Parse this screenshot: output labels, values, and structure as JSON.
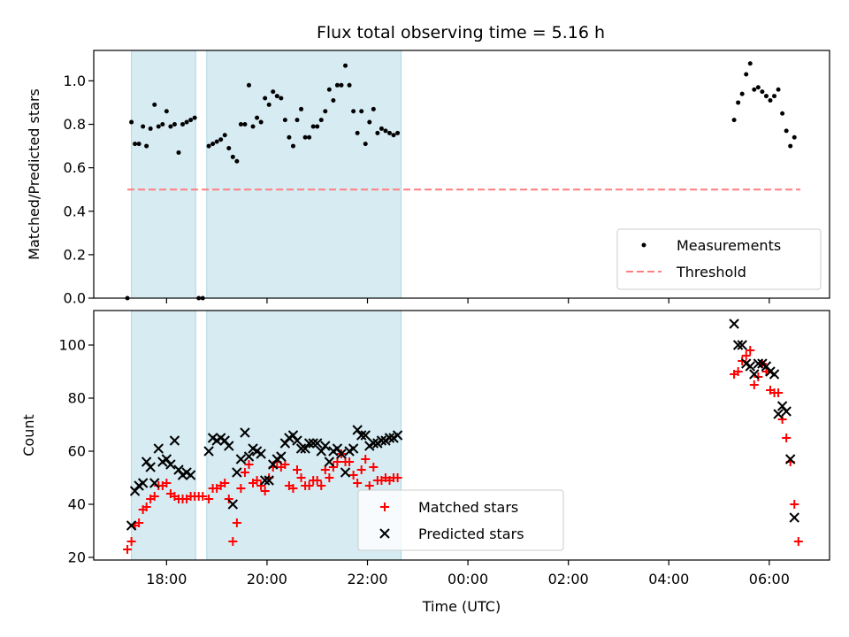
{
  "title": "Flux total observing time = 5.16 h",
  "colors": {
    "measurement": "#000000",
    "threshold": "#ff7f7f",
    "matched": "#ff0000",
    "predicted": "#000000",
    "shade": "#add8e6"
  },
  "chart_data": [
    {
      "type": "scatter",
      "ylabel": "Matched/Predicted stars",
      "xlabel": "",
      "ylim": [
        0,
        1.14
      ],
      "yticks": [
        0.0,
        0.2,
        0.4,
        0.6,
        0.8,
        1.0
      ],
      "ytick_labels": [
        "0.0",
        "0.2",
        "0.4",
        "0.6",
        "0.8",
        "1.0"
      ],
      "x_unit": "hours since 00:00 UTC (day 1 = 24+)",
      "legend_position": "lower-right",
      "shaded_intervals": [
        [
          17.3,
          18.58
        ],
        [
          18.8,
          22.67
        ]
      ],
      "threshold": {
        "name": "Threshold",
        "y": 0.5,
        "x_range": [
          17.22,
          30.62
        ]
      },
      "series": [
        {
          "name": "Measurements",
          "marker": "dot",
          "points": [
            [
              17.22,
              0.0
            ],
            [
              17.3,
              0.81
            ],
            [
              17.37,
              0.71
            ],
            [
              17.45,
              0.71
            ],
            [
              17.53,
              0.79
            ],
            [
              17.6,
              0.7
            ],
            [
              17.68,
              0.78
            ],
            [
              17.76,
              0.89
            ],
            [
              17.84,
              0.79
            ],
            [
              17.92,
              0.8
            ],
            [
              18.0,
              0.86
            ],
            [
              18.08,
              0.79
            ],
            [
              18.16,
              0.8
            ],
            [
              18.24,
              0.67
            ],
            [
              18.32,
              0.8
            ],
            [
              18.4,
              0.81
            ],
            [
              18.48,
              0.82
            ],
            [
              18.56,
              0.83
            ],
            [
              18.64,
              0.0
            ],
            [
              18.72,
              0.0
            ],
            [
              18.84,
              0.7
            ],
            [
              18.92,
              0.71
            ],
            [
              19.0,
              0.72
            ],
            [
              19.08,
              0.73
            ],
            [
              19.16,
              0.75
            ],
            [
              19.24,
              0.69
            ],
            [
              19.32,
              0.65
            ],
            [
              19.4,
              0.63
            ],
            [
              19.48,
              0.8
            ],
            [
              19.56,
              0.8
            ],
            [
              19.64,
              0.98
            ],
            [
              19.72,
              0.79
            ],
            [
              19.8,
              0.83
            ],
            [
              19.88,
              0.81
            ],
            [
              19.96,
              0.92
            ],
            [
              20.04,
              0.89
            ],
            [
              20.12,
              0.95
            ],
            [
              20.2,
              0.93
            ],
            [
              20.28,
              0.92
            ],
            [
              20.36,
              0.82
            ],
            [
              20.44,
              0.74
            ],
            [
              20.52,
              0.7
            ],
            [
              20.6,
              0.82
            ],
            [
              20.68,
              0.87
            ],
            [
              20.76,
              0.74
            ],
            [
              20.84,
              0.74
            ],
            [
              20.92,
              0.79
            ],
            [
              21.0,
              0.79
            ],
            [
              21.08,
              0.82
            ],
            [
              21.16,
              0.86
            ],
            [
              21.24,
              0.96
            ],
            [
              21.32,
              0.91
            ],
            [
              21.4,
              0.98
            ],
            [
              21.48,
              0.98
            ],
            [
              21.56,
              1.07
            ],
            [
              21.64,
              0.98
            ],
            [
              21.72,
              0.86
            ],
            [
              21.8,
              0.76
            ],
            [
              21.88,
              0.86
            ],
            [
              21.96,
              0.71
            ],
            [
              22.04,
              0.81
            ],
            [
              22.12,
              0.87
            ],
            [
              22.2,
              0.76
            ],
            [
              22.28,
              0.78
            ],
            [
              22.36,
              0.77
            ],
            [
              22.44,
              0.76
            ],
            [
              22.52,
              0.75
            ],
            [
              22.6,
              0.76
            ],
            [
              29.3,
              0.82
            ],
            [
              29.38,
              0.9
            ],
            [
              29.46,
              0.94
            ],
            [
              29.54,
              1.03
            ],
            [
              29.62,
              1.08
            ],
            [
              29.7,
              0.96
            ],
            [
              29.78,
              0.97
            ],
            [
              29.86,
              0.95
            ],
            [
              29.94,
              0.93
            ],
            [
              30.02,
              0.91
            ],
            [
              30.1,
              0.93
            ],
            [
              30.18,
              0.96
            ],
            [
              30.26,
              0.85
            ],
            [
              30.34,
              0.77
            ],
            [
              30.42,
              0.7
            ],
            [
              30.5,
              0.74
            ]
          ]
        }
      ]
    },
    {
      "type": "scatter",
      "ylabel": "Count",
      "xlabel": "Time (UTC)",
      "xlim": [
        16.55,
        31.2
      ],
      "xticks": [
        18,
        20,
        22,
        24,
        26,
        28,
        30
      ],
      "xtick_labels": [
        "18:00",
        "20:00",
        "22:00",
        "00:00",
        "02:00",
        "04:00",
        "06:00"
      ],
      "ylim": [
        19,
        113
      ],
      "yticks": [
        20,
        40,
        60,
        80,
        100
      ],
      "ytick_labels": [
        "20",
        "40",
        "60",
        "80",
        "100"
      ],
      "legend_position": "lower-center",
      "shaded_intervals": [
        [
          17.3,
          18.58
        ],
        [
          18.8,
          22.67
        ]
      ],
      "series": [
        {
          "name": "Matched stars",
          "marker": "plus",
          "points": [
            [
              17.22,
              23
            ],
            [
              17.3,
              26
            ],
            [
              17.37,
              32
            ],
            [
              17.45,
              33
            ],
            [
              17.53,
              38
            ],
            [
              17.6,
              39
            ],
            [
              17.68,
              42
            ],
            [
              17.76,
              43
            ],
            [
              17.84,
              47
            ],
            [
              17.92,
              47
            ],
            [
              18.0,
              48
            ],
            [
              18.08,
              44
            ],
            [
              18.16,
              43
            ],
            [
              18.24,
              42
            ],
            [
              18.32,
              42
            ],
            [
              18.4,
              42
            ],
            [
              18.48,
              43
            ],
            [
              18.56,
              43
            ],
            [
              18.64,
              43
            ],
            [
              18.72,
              43
            ],
            [
              18.84,
              42
            ],
            [
              18.92,
              46
            ],
            [
              19.0,
              46
            ],
            [
              19.08,
              47
            ],
            [
              19.16,
              48
            ],
            [
              19.24,
              42
            ],
            [
              19.32,
              26
            ],
            [
              19.4,
              33
            ],
            [
              19.48,
              46
            ],
            [
              19.56,
              52
            ],
            [
              19.64,
              55
            ],
            [
              19.72,
              48
            ],
            [
              19.8,
              49
            ],
            [
              19.88,
              47
            ],
            [
              19.96,
              45
            ],
            [
              20.04,
              50
            ],
            [
              20.12,
              54
            ],
            [
              20.2,
              56
            ],
            [
              20.28,
              54
            ],
            [
              20.36,
              55
            ],
            [
              20.44,
              47
            ],
            [
              20.52,
              46
            ],
            [
              20.6,
              53
            ],
            [
              20.68,
              50
            ],
            [
              20.76,
              47
            ],
            [
              20.84,
              47
            ],
            [
              20.92,
              49
            ],
            [
              21.0,
              49
            ],
            [
              21.08,
              47
            ],
            [
              21.16,
              53
            ],
            [
              21.24,
              50
            ],
            [
              21.32,
              54
            ],
            [
              21.4,
              56
            ],
            [
              21.48,
              59
            ],
            [
              21.56,
              56
            ],
            [
              21.64,
              56
            ],
            [
              21.72,
              51
            ],
            [
              21.8,
              48
            ],
            [
              21.88,
              53
            ],
            [
              21.96,
              57
            ],
            [
              22.04,
              47
            ],
            [
              22.12,
              54
            ],
            [
              22.2,
              49
            ],
            [
              22.28,
              49
            ],
            [
              22.36,
              50
            ],
            [
              22.44,
              49
            ],
            [
              22.52,
              50
            ],
            [
              22.6,
              50
            ],
            [
              29.3,
              89
            ],
            [
              29.38,
              90
            ],
            [
              29.46,
              94
            ],
            [
              29.54,
              96
            ],
            [
              29.62,
              98
            ],
            [
              29.7,
              85
            ],
            [
              29.78,
              88
            ],
            [
              29.86,
              93
            ],
            [
              29.94,
              90
            ],
            [
              30.02,
              83
            ],
            [
              30.1,
              82
            ],
            [
              30.18,
              82
            ],
            [
              30.26,
              72
            ],
            [
              30.34,
              65
            ],
            [
              30.42,
              56
            ],
            [
              30.5,
              40
            ],
            [
              30.58,
              26
            ]
          ]
        },
        {
          "name": "Predicted stars",
          "marker": "x",
          "points": [
            [
              17.3,
              32
            ],
            [
              17.37,
              45
            ],
            [
              17.45,
              47
            ],
            [
              17.53,
              48
            ],
            [
              17.6,
              56
            ],
            [
              17.68,
              54
            ],
            [
              17.76,
              48
            ],
            [
              17.84,
              61
            ],
            [
              17.92,
              56
            ],
            [
              18.0,
              57
            ],
            [
              18.08,
              55
            ],
            [
              18.16,
              64
            ],
            [
              18.24,
              53
            ],
            [
              18.32,
              51
            ],
            [
              18.4,
              52
            ],
            [
              18.48,
              51
            ],
            [
              18.84,
              60
            ],
            [
              18.92,
              65
            ],
            [
              19.0,
              64
            ],
            [
              19.08,
              65
            ],
            [
              19.16,
              64
            ],
            [
              19.24,
              62
            ],
            [
              19.32,
              40
            ],
            [
              19.4,
              52
            ],
            [
              19.48,
              57
            ],
            [
              19.56,
              67
            ],
            [
              19.64,
              58
            ],
            [
              19.72,
              61
            ],
            [
              19.8,
              60
            ],
            [
              19.88,
              59
            ],
            [
              19.96,
              49
            ],
            [
              20.04,
              49
            ],
            [
              20.12,
              55
            ],
            [
              20.2,
              57
            ],
            [
              20.28,
              58
            ],
            [
              20.36,
              63
            ],
            [
              20.44,
              65
            ],
            [
              20.52,
              66
            ],
            [
              20.6,
              64
            ],
            [
              20.68,
              61
            ],
            [
              20.76,
              61
            ],
            [
              20.84,
              63
            ],
            [
              20.92,
              63
            ],
            [
              21.0,
              63
            ],
            [
              21.08,
              60
            ],
            [
              21.16,
              62
            ],
            [
              21.24,
              56
            ],
            [
              21.32,
              60
            ],
            [
              21.4,
              61
            ],
            [
              21.48,
              59
            ],
            [
              21.56,
              52
            ],
            [
              21.64,
              60
            ],
            [
              21.72,
              61
            ],
            [
              21.8,
              68
            ],
            [
              21.88,
              66
            ],
            [
              21.96,
              66
            ],
            [
              22.04,
              62
            ],
            [
              22.12,
              63
            ],
            [
              22.2,
              63
            ],
            [
              22.28,
              64
            ],
            [
              22.36,
              64
            ],
            [
              22.44,
              65
            ],
            [
              22.52,
              65
            ],
            [
              22.6,
              66
            ],
            [
              29.3,
              108
            ],
            [
              29.38,
              100
            ],
            [
              29.46,
              100
            ],
            [
              29.54,
              93
            ],
            [
              29.62,
              92
            ],
            [
              29.7,
              89
            ],
            [
              29.78,
              93
            ],
            [
              29.86,
              93
            ],
            [
              29.94,
              92
            ],
            [
              30.02,
              90
            ],
            [
              30.1,
              89
            ],
            [
              30.18,
              74
            ],
            [
              30.26,
              77
            ],
            [
              30.34,
              75
            ],
            [
              30.42,
              57
            ],
            [
              30.5,
              35
            ]
          ]
        }
      ]
    }
  ]
}
